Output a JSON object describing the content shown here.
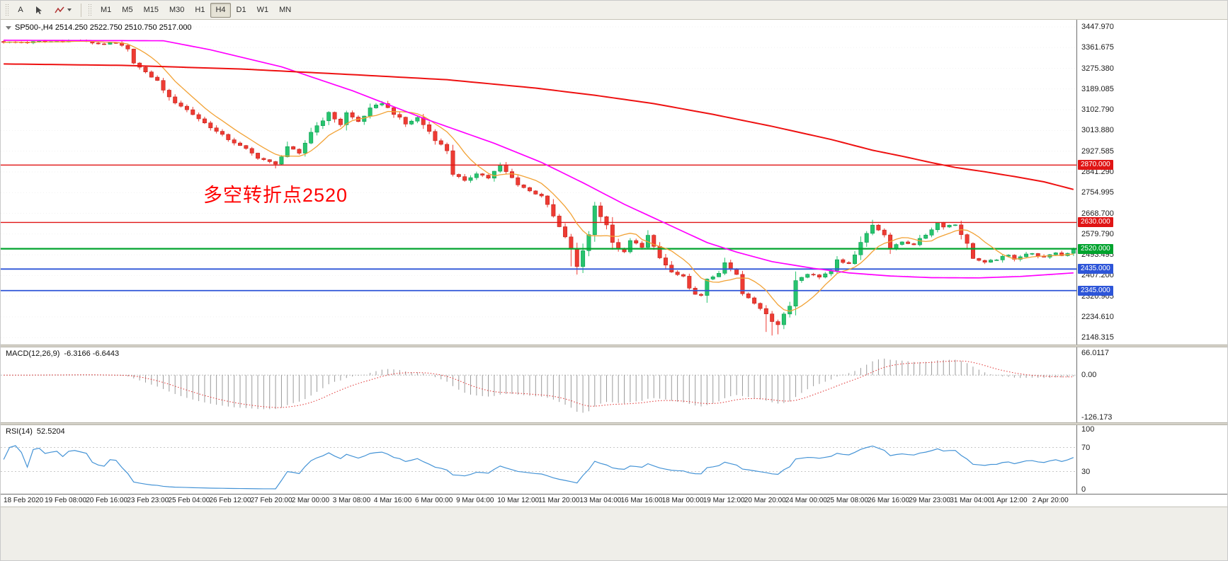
{
  "toolbar": {
    "tools": [
      {
        "label": "A"
      }
    ],
    "timeframes": [
      "M1",
      "M5",
      "M15",
      "M30",
      "H1",
      "H4",
      "D1",
      "W1",
      "MN"
    ],
    "active_timeframe": "H4"
  },
  "chart_data": {
    "type": "candlestick",
    "symbol": "SP500-",
    "period": "H4",
    "title": "SP500-,H4 2514.250 2522.750 2510.750 2517.000",
    "ohlc_display": {
      "open": "2514.250",
      "high": "2522.750",
      "low": "2510.750",
      "close": "2517.000"
    },
    "annotation": {
      "text": "多空转折点2520",
      "color": "#ff0000"
    },
    "price_axis": {
      "max": 3447.97,
      "min": 2148.315,
      "ticks": [
        "3447.970",
        "3361.675",
        "3275.380",
        "3189.085",
        "3102.790",
        "3013.880",
        "2927.585",
        "2841.290",
        "2754.995",
        "2668.700",
        "2579.790",
        "2493.495",
        "2407.200",
        "2320.905",
        "2234.610",
        "2148.315"
      ]
    },
    "hlines": [
      {
        "price": 2870,
        "label": "2870.000",
        "color": "#e01515",
        "width": 1.4
      },
      {
        "price": 2630,
        "label": "2630.000",
        "color": "#e01515",
        "width": 1.4
      },
      {
        "price": 2520,
        "label": "2520.000",
        "color": "#00a32e",
        "width": 2.2
      },
      {
        "price": 2435,
        "label": "2435.000",
        "color": "#2d55d8",
        "width": 1.8
      },
      {
        "price": 2345,
        "label": "2345.000",
        "color": "#2d55d8",
        "width": 1.8
      }
    ],
    "bull_color": "#27c46e",
    "bull_stroke": "#0d9b52",
    "bear_color": "#ee3b33",
    "bear_stroke": "#c2221c",
    "ma_fast_color": "#f2a235",
    "ma_mid_color": "#ff00ff",
    "ma_slow_color": "#ee1111",
    "grid_color": "#f1f1f1",
    "bars": 182,
    "close_anchors": [
      [
        0,
        3383
      ],
      [
        7,
        3386
      ],
      [
        13,
        3390
      ],
      [
        16,
        3378
      ],
      [
        19,
        3380
      ],
      [
        21,
        3352
      ],
      [
        22,
        3300
      ],
      [
        24,
        3257
      ],
      [
        26,
        3221
      ],
      [
        28,
        3150
      ],
      [
        31,
        3101
      ],
      [
        34,
        3046
      ],
      [
        37,
        2992
      ],
      [
        40,
        2950
      ],
      [
        43,
        2903
      ],
      [
        46,
        2872
      ],
      [
        48,
        2948
      ],
      [
        50,
        2916
      ],
      [
        52,
        3008
      ],
      [
        55,
        3088
      ],
      [
        57,
        3041
      ],
      [
        58,
        3088
      ],
      [
        60,
        3052
      ],
      [
        62,
        3104
      ],
      [
        64,
        3130
      ],
      [
        66,
        3086
      ],
      [
        68,
        3041
      ],
      [
        70,
        3068
      ],
      [
        72,
        3011
      ],
      [
        73,
        2976
      ],
      [
        75,
        2931
      ],
      [
        76,
        2833
      ],
      [
        78,
        2801
      ],
      [
        80,
        2839
      ],
      [
        82,
        2816
      ],
      [
        84,
        2869
      ],
      [
        85,
        2841
      ],
      [
        87,
        2791
      ],
      [
        89,
        2761
      ],
      [
        91,
        2744
      ],
      [
        92,
        2701
      ],
      [
        94,
        2611
      ],
      [
        96,
        2521
      ],
      [
        97,
        2443
      ],
      [
        99,
        2581
      ],
      [
        100,
        2698
      ],
      [
        102,
        2621
      ],
      [
        103,
        2541
      ],
      [
        105,
        2501
      ],
      [
        106,
        2553
      ],
      [
        108,
        2531
      ],
      [
        109,
        2574
      ],
      [
        111,
        2481
      ],
      [
        113,
        2421
      ],
      [
        115,
        2401
      ],
      [
        116,
        2351
      ],
      [
        118,
        2321
      ],
      [
        119,
        2389
      ],
      [
        121,
        2419
      ],
      [
        122,
        2459
      ],
      [
        124,
        2411
      ],
      [
        125,
        2331
      ],
      [
        127,
        2291
      ],
      [
        129,
        2251
      ],
      [
        130,
        2221
      ],
      [
        131,
        2203
      ],
      [
        133,
        2281
      ],
      [
        134,
        2389
      ],
      [
        136,
        2419
      ],
      [
        138,
        2401
      ],
      [
        140,
        2431
      ],
      [
        141,
        2479
      ],
      [
        143,
        2451
      ],
      [
        145,
        2549
      ],
      [
        147,
        2619
      ],
      [
        149,
        2581
      ],
      [
        150,
        2521
      ],
      [
        152,
        2549
      ],
      [
        154,
        2541
      ],
      [
        156,
        2579
      ],
      [
        158,
        2629
      ],
      [
        159,
        2616
      ],
      [
        161,
        2621
      ],
      [
        163,
        2541
      ],
      [
        164,
        2481
      ],
      [
        166,
        2461
      ],
      [
        168,
        2476
      ],
      [
        170,
        2491
      ],
      [
        171,
        2481
      ],
      [
        173,
        2499
      ],
      [
        175,
        2494
      ],
      [
        176,
        2481
      ],
      [
        178,
        2504
      ],
      [
        179,
        2491
      ],
      [
        181,
        2517
      ]
    ],
    "wick_overrides": [
      {
        "bar": 46,
        "low": 2856
      },
      {
        "bar": 64,
        "high": 3138
      },
      {
        "bar": 96,
        "low": 2446
      },
      {
        "bar": 97,
        "low": 2412
      },
      {
        "bar": 100,
        "high": 2716
      },
      {
        "bar": 129,
        "low": 2172
      },
      {
        "bar": 130,
        "low": 2157
      },
      {
        "bar": 131,
        "low": 2162
      },
      {
        "bar": 147,
        "high": 2641
      }
    ],
    "ma_mid_anchors": [
      [
        0,
        3392
      ],
      [
        27,
        3390
      ],
      [
        35,
        3352
      ],
      [
        47,
        3281
      ],
      [
        59,
        3181
      ],
      [
        71,
        3066
      ],
      [
        83,
        2961
      ],
      [
        91,
        2881
      ],
      [
        98,
        2796
      ],
      [
        105,
        2706
      ],
      [
        112,
        2626
      ],
      [
        119,
        2546
      ],
      [
        124,
        2506
      ],
      [
        130,
        2466
      ],
      [
        137,
        2438
      ],
      [
        143,
        2419
      ],
      [
        150,
        2406
      ],
      [
        157,
        2399
      ],
      [
        165,
        2398
      ],
      [
        172,
        2404
      ],
      [
        181,
        2419
      ]
    ],
    "ma_slow_anchors": [
      [
        0,
        3293
      ],
      [
        20,
        3287
      ],
      [
        40,
        3272
      ],
      [
        60,
        3247
      ],
      [
        75,
        3227
      ],
      [
        90,
        3192
      ],
      [
        100,
        3162
      ],
      [
        110,
        3127
      ],
      [
        120,
        3082
      ],
      [
        130,
        3032
      ],
      [
        140,
        2977
      ],
      [
        147,
        2932
      ],
      [
        152,
        2907
      ],
      [
        157,
        2880
      ],
      [
        161,
        2860
      ],
      [
        166,
        2842
      ],
      [
        171,
        2822
      ],
      [
        176,
        2800
      ],
      [
        181,
        2768
      ]
    ]
  },
  "macd": {
    "label": "MACD(12,26,9)",
    "values_text": "-6.3166 -6.6443",
    "histogram_color": "#9b9b9b",
    "signal_color": "#e03030",
    "zero_line_color": "#bdbdbd",
    "axis": {
      "max": 66.0117,
      "min": -126.173,
      "ticks": [
        {
          "label": "66.0117",
          "value": 66.0117
        },
        {
          "label": "0.00",
          "value": 0
        },
        {
          "label": "-126.173",
          "value": -126.173
        }
      ]
    }
  },
  "rsi": {
    "label": "RSI(14)",
    "value_text": "52.5204",
    "color": "#4493d6",
    "level_line_color": "#c8c8c8",
    "levels": [
      70,
      30
    ],
    "axis_ticks": [
      {
        "label": "100",
        "value": 100
      },
      {
        "label": "70",
        "value": 70
      },
      {
        "label": "30",
        "value": 30
      },
      {
        "label": "0",
        "value": 0
      }
    ]
  },
  "time_axis": {
    "labels": [
      "18 Feb 2020",
      "19 Feb 08:00",
      "20 Feb 16:00",
      "23 Feb 23:00",
      "25 Feb 04:00",
      "26 Feb 12:00",
      "27 Feb 20:00",
      "2 Mar 00:00",
      "3 Mar 08:00",
      "4 Mar 16:00",
      "6 Mar 00:00",
      "9 Mar 04:00",
      "10 Mar 12:00",
      "11 Mar 20:00",
      "13 Mar 04:00",
      "16 Mar 16:00",
      "18 Mar 00:00",
      "19 Mar 12:00",
      "20 Mar 20:00",
      "24 Mar 00:00",
      "25 Mar 08:00",
      "26 Mar 16:00",
      "29 Mar 23:00",
      "31 Mar 04:00",
      "1 Apr 12:00",
      "2 Apr 20:00"
    ]
  }
}
